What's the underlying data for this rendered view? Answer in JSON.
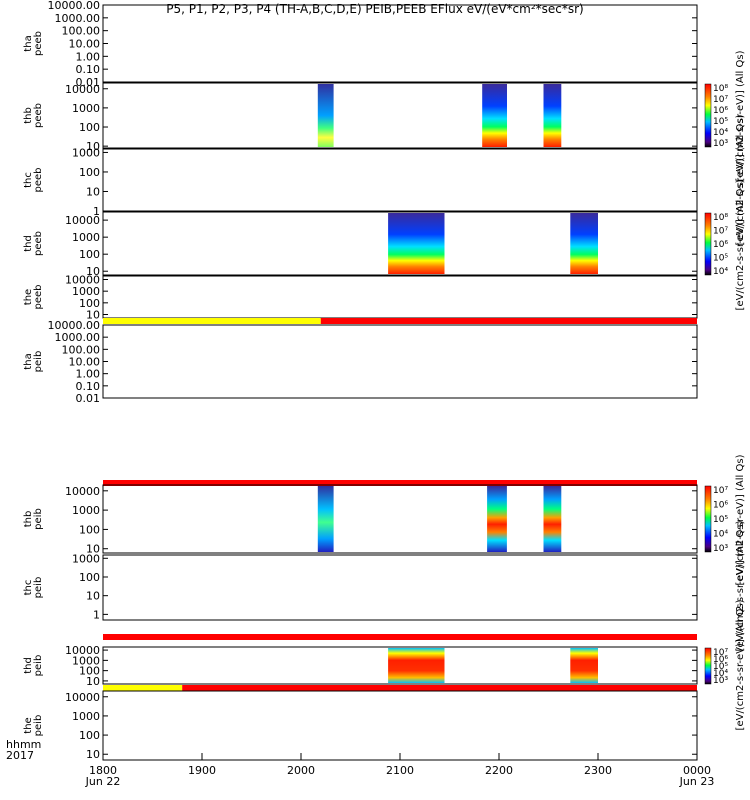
{
  "title": "P5, P1, P2, P3, P4 (TH-A,B,C,D,E) PEIB,PEEB EFlux eV/(eV*cm²*sec*sr)",
  "time_labels": [
    "hhmm",
    "2017"
  ],
  "x_axis": {
    "tick_labels": [
      "1800",
      "1900",
      "2000",
      "2100",
      "2200",
      "2300",
      "0000"
    ],
    "date_labels": {
      "1800": "Jun 22",
      "0000": "Jun 23"
    },
    "range_hours": [
      18,
      24
    ]
  },
  "colorbar_labels": {
    "peeb_b": "[eV/(cm2-s-sr-eV)] (All Qs)",
    "peeb_c": "[eV/(cm2-s-sr-eV)] (All Qs)",
    "peeb_d": "[eV/(cm2-s-sr-eV)] (All Qs)",
    "peib_b": "[eV/(cm2-s-sr-eV)] (All Qs)",
    "peib_c": "[eV/(cm2-s-sr-eV)] (All Qs)",
    "peib_d": "[eV/(cm2-s-sr-eV)] (All Qs)"
  },
  "chart_data": {
    "type": "heatmap",
    "panels": [
      {
        "id": "tha_peeb",
        "ylabel": [
          "tha",
          "peeb"
        ],
        "ylim": [
          0.01,
          10000
        ],
        "yticks": [
          "10000.00",
          "1000.00",
          "100.00",
          "10.00",
          "1.00",
          "0.10",
          "0.01"
        ],
        "blocks": [],
        "colorbar": null
      },
      {
        "id": "thb_peeb",
        "ylabel": [
          "thb",
          "peeb"
        ],
        "ylim": [
          8,
          20000
        ],
        "yticks": [
          "10000",
          "1000",
          "100",
          "10"
        ],
        "blocks": [
          {
            "start": 20.17,
            "end": 20.33,
            "peak": "low-energy green/yellow"
          },
          {
            "start": 21.83,
            "end": 22.08,
            "peak": "red/orange near 10-30 eV"
          },
          {
            "start": 22.45,
            "end": 22.63,
            "peak": "red/orange near 10-30 eV"
          }
        ],
        "colorbar": {
          "ticks": [
            "10⁸",
            "10⁷",
            "10⁶",
            "10⁵",
            "10⁴",
            "10³"
          ]
        }
      },
      {
        "id": "thc_peeb",
        "ylabel": [
          "thc",
          "peeb"
        ],
        "ylim": [
          1,
          1500
        ],
        "yticks": [
          "1000",
          "100",
          "10",
          "1"
        ],
        "blocks": [],
        "colorbar": {
          "ticks": []
        }
      },
      {
        "id": "thd_peeb",
        "ylabel": [
          "thd",
          "peeb"
        ],
        "ylim": [
          6,
          30000
        ],
        "yticks": [
          "10000",
          "1000",
          "100",
          "10"
        ],
        "blocks": [
          {
            "start": 20.88,
            "end": 21.45,
            "peak": "red below 100 eV"
          },
          {
            "start": 22.72,
            "end": 23.0,
            "peak": "dark red near 20-60 eV"
          }
        ],
        "colorbar": {
          "ticks": [
            "10⁸",
            "10⁷",
            "10⁶",
            "10⁵",
            "10⁴"
          ]
        }
      },
      {
        "id": "the_peeb",
        "ylabel": [
          "the",
          "peeb"
        ],
        "ylim": [
          5,
          20000
        ],
        "yticks": [
          "10000",
          "1000",
          "100",
          "10"
        ],
        "blocks": [],
        "colorbar": null,
        "status_bar": [
          {
            "start": 18.0,
            "end": 20.2,
            "color": "#ffff00"
          },
          {
            "start": 20.2,
            "end": 24.0,
            "color": "#ff0000"
          }
        ]
      },
      {
        "id": "tha_peib",
        "ylabel": [
          "tha",
          "peib"
        ],
        "ylim": [
          0.01,
          10000
        ],
        "yticks": [
          "10000.00",
          "1000.00",
          "100.00",
          "10.00",
          "1.00",
          "0.10",
          "0.01"
        ],
        "blocks": [],
        "colorbar": null,
        "status_bar": [
          {
            "start": 18.0,
            "end": 24.0,
            "color": "#ff0000"
          }
        ]
      },
      {
        "id": "thb_peib",
        "ylabel": [
          "thb",
          "peib"
        ],
        "ylim": [
          6,
          20000
        ],
        "yticks": [
          "10000",
          "1000",
          "100",
          "10"
        ],
        "blocks": [
          {
            "start": 20.17,
            "end": 20.33,
            "peak": "green/cyan"
          },
          {
            "start": 21.88,
            "end": 22.08,
            "peak": "red near 500-1000 eV"
          },
          {
            "start": 22.45,
            "end": 22.63,
            "peak": "red near 500-1000 eV"
          }
        ],
        "colorbar": {
          "ticks": [
            "10⁷",
            "10⁶",
            "10⁵",
            "10⁴",
            "10³"
          ]
        }
      },
      {
        "id": "thc_peib",
        "ylabel": [
          "thc",
          "peib"
        ],
        "ylim": [
          0.5,
          1500
        ],
        "yticks": [
          "1000",
          "100",
          "10",
          "1"
        ],
        "blocks": [],
        "colorbar": {
          "ticks": []
        },
        "status_bar": [
          {
            "start": 18.0,
            "end": 24.0,
            "color": "#ff0000"
          }
        ]
      },
      {
        "id": "thd_peib",
        "ylabel": [
          "thd",
          "peib"
        ],
        "ylim": [
          5,
          20000
        ],
        "yticks": [
          "10000",
          "1000",
          "100",
          "10"
        ],
        "blocks": [
          {
            "start": 20.88,
            "end": 21.45,
            "peak": "red 100-3000 eV"
          },
          {
            "start": 22.72,
            "end": 23.0,
            "peak": "red near 300-1000 eV"
          }
        ],
        "colorbar": {
          "ticks": [
            "10⁷",
            "10⁶",
            "10⁵",
            "10⁴",
            "10³"
          ]
        },
        "status_bar": [
          {
            "start": 18.0,
            "end": 18.8,
            "color": "#ffff00"
          },
          {
            "start": 18.8,
            "end": 24.0,
            "color": "#ff0000"
          }
        ]
      },
      {
        "id": "the_peib",
        "ylabel": [
          "the",
          "peib"
        ],
        "ylim": [
          5,
          20000
        ],
        "yticks": [
          "10000",
          "1000",
          "100",
          "10"
        ],
        "blocks": [],
        "colorbar": null
      }
    ]
  }
}
